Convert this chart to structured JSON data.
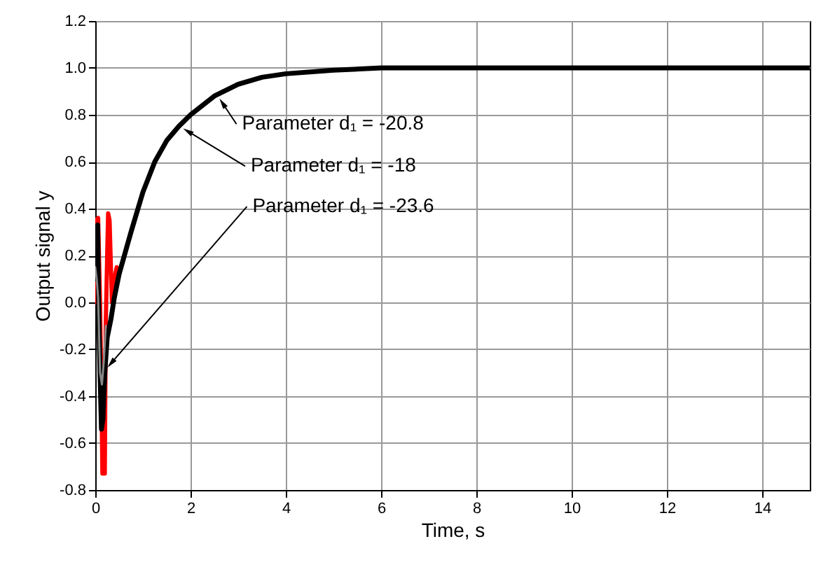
{
  "chart_data": {
    "type": "line",
    "xlabel": "Time, s",
    "ylabel": "Output signal y",
    "xlim": [
      0,
      15
    ],
    "ylim": [
      -0.8,
      1.2
    ],
    "xticks": [
      0,
      2,
      4,
      6,
      8,
      10,
      12,
      14
    ],
    "yticks": [
      -0.8,
      -0.6,
      -0.4,
      -0.2,
      {
        "value": 0,
        "label": "0.0"
      },
      0.2,
      0.4,
      0.6,
      0.8,
      {
        "value": 1,
        "label": "1.0"
      },
      1.2
    ],
    "grid": true,
    "line_style": "solid",
    "marker": "none",
    "series": [
      {
        "color": "#888888",
        "x": [
          0,
          0.03,
          0.06,
          0.1,
          0.14,
          0.18,
          0.22
        ],
        "values": [
          0.15,
          0.1,
          0.02,
          -0.3,
          -0.35,
          -0.25,
          -0.1
        ]
      },
      {
        "color": "#ff0000",
        "x": [
          0,
          0.02,
          0.06,
          0.1,
          0.13,
          0.15,
          0.2,
          0.22,
          0.25,
          0.27,
          0.3,
          0.35,
          0.4,
          0.45
        ],
        "values": [
          0.0,
          0.35,
          0.36,
          0.0,
          -0.4,
          -0.73,
          -0.73,
          -0.1,
          0.2,
          0.38,
          0.35,
          0.0,
          0.1,
          0.15
        ]
      },
      {
        "color": "#000000",
        "x": [
          0,
          0.03,
          0.05,
          0.07,
          0.1,
          0.13,
          0.16,
          0.2,
          0.25,
          0.33,
          0.4,
          0.5,
          0.75,
          1,
          1.25,
          1.5,
          1.75,
          2,
          2.5,
          3,
          3.5,
          4,
          5,
          6,
          8,
          10,
          12,
          15
        ],
        "values": [
          0.1,
          0.2,
          0.33,
          0.0,
          -0.3,
          -0.54,
          -0.5,
          -0.3,
          -0.15,
          -0.07,
          0.02,
          0.12,
          0.3,
          0.47,
          0.6,
          0.69,
          0.75,
          0.8,
          0.88,
          0.93,
          0.96,
          0.975,
          0.99,
          1.0,
          1.0,
          1.0,
          1.0,
          1.0
        ]
      }
    ],
    "annotations": [
      {
        "text": "Parameter d₁ = -20.8",
        "x": 2.67,
        "y": 0.85
      },
      {
        "text": "Parameter d₁ = -18",
        "x": 1.94,
        "y": 0.73
      },
      {
        "text": "Parameter d₁ = -23.6",
        "x": 0.33,
        "y": -0.26
      }
    ]
  }
}
